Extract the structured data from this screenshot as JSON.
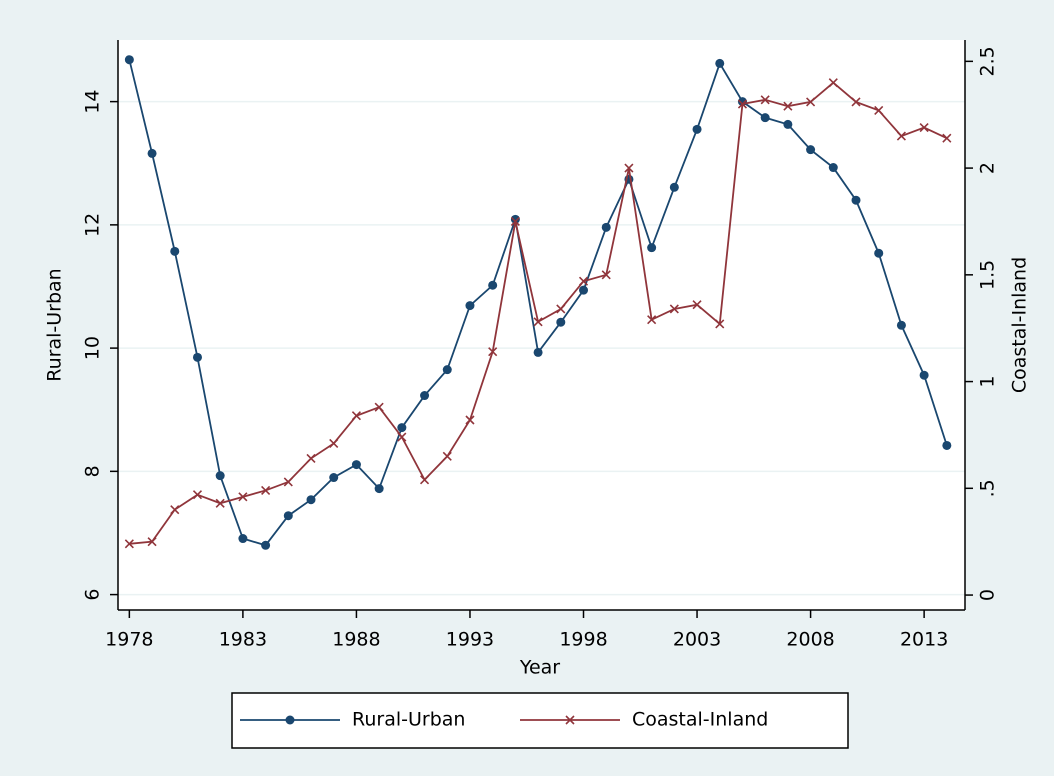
{
  "chart_data": {
    "type": "line",
    "x_label": "Year",
    "y_label": "Rural-Urban",
    "y2_label": "Coastal-Inland",
    "x": [
      1978,
      1979,
      1980,
      1981,
      1982,
      1983,
      1984,
      1985,
      1986,
      1987,
      1988,
      1989,
      1990,
      1991,
      1992,
      1993,
      1994,
      1995,
      1996,
      1997,
      1998,
      1999,
      2000,
      2001,
      2002,
      2003,
      2004,
      2005,
      2006,
      2007,
      2008,
      2009,
      2010,
      2011,
      2012,
      2013,
      2014
    ],
    "series": [
      {
        "name": "Rural-Urban",
        "color": "#1a476f",
        "axis": "y",
        "marker": "circle",
        "values": [
          14.68,
          13.16,
          11.57,
          9.85,
          7.93,
          6.91,
          6.8,
          7.28,
          7.54,
          7.9,
          8.11,
          7.72,
          8.71,
          9.23,
          9.65,
          10.69,
          11.02,
          12.09,
          9.93,
          10.42,
          10.94,
          11.96,
          12.74,
          11.63,
          12.61,
          13.55,
          14.62,
          14.0,
          13.74,
          13.63,
          13.22,
          12.93,
          12.4,
          11.54,
          10.37,
          9.56,
          8.42
        ]
      },
      {
        "name": "Coastal-Inland",
        "color": "#90353b",
        "axis": "y2",
        "marker": "x",
        "values": [
          0.24,
          0.25,
          0.4,
          0.47,
          0.43,
          0.46,
          0.49,
          0.53,
          0.64,
          0.71,
          0.84,
          0.88,
          0.74,
          0.54,
          0.65,
          0.82,
          1.14,
          1.75,
          1.28,
          1.34,
          1.47,
          1.5,
          2.0,
          1.29,
          1.34,
          1.36,
          1.27,
          2.3,
          2.32,
          2.29,
          2.31,
          2.4,
          2.31,
          2.27,
          2.15,
          2.19,
          2.14
        ]
      }
    ],
    "xlim": [
      1977.5,
      2014.8
    ],
    "xticks": [
      1978,
      1983,
      1988,
      1993,
      1998,
      2003,
      2008,
      2013
    ],
    "ylim": [
      5.75,
      15.0
    ],
    "yticks": [
      6,
      8,
      10,
      12,
      14
    ],
    "y2lim": [
      -0.07,
      2.6
    ],
    "y2ticks": [
      0,
      {
        "value": 0.5,
        "label": ".5"
      },
      1,
      1.5,
      2,
      2.5
    ],
    "grid": true,
    "legend": "bottom"
  }
}
